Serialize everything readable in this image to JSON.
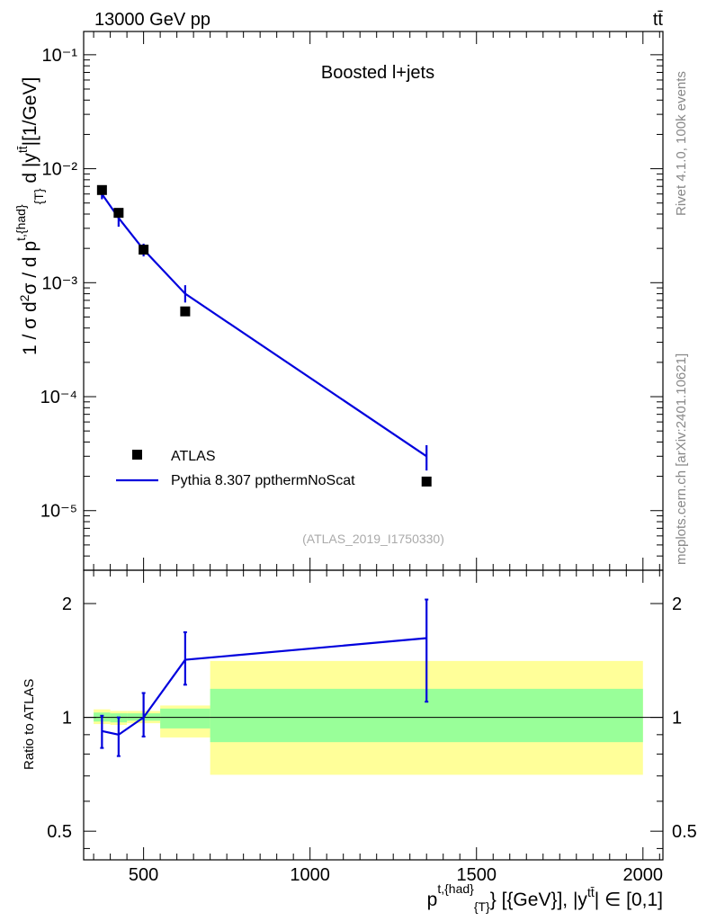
{
  "header": {
    "left": "13000 GeV pp",
    "right": "tt̄"
  },
  "side_texts": {
    "rivet": "Rivet 4.1.0,  100k events",
    "mcplots": "mcplots.cern.ch [arXiv:2401.10621]"
  },
  "chart_data": {
    "type": "line",
    "title": "Boosted l+jets",
    "analysis_id": "(ATLAS_2019_I1750330)",
    "main": {
      "ylabel": "1 / σ d²σ / d p^{t,{had}}_{T} d |y^{tt̄}| [1/GeV]",
      "yscale": "log",
      "ylim": [
        3e-06,
        0.16
      ],
      "y_ticks": [
        {
          "value": 0.1,
          "label": "10⁻¹"
        },
        {
          "value": 0.01,
          "label": "10⁻²"
        },
        {
          "value": 0.001,
          "label": "10⁻³"
        },
        {
          "value": 0.0001,
          "label": "10⁻⁴"
        },
        {
          "value": 1e-05,
          "label": "10⁻⁵"
        }
      ],
      "series": [
        {
          "name": "ATLAS",
          "kind": "data-points",
          "color": "#000000",
          "x": [
            375,
            425,
            500,
            625,
            1350
          ],
          "y": [
            0.0065,
            0.0041,
            0.00195,
            0.00056,
            1.8e-05
          ],
          "err_low": [
            0.0002,
            0.0001,
            5e-05,
            2e-05,
            1e-06
          ],
          "err_high": [
            0.0002,
            0.0001,
            5e-05,
            2e-05,
            1e-06
          ]
        },
        {
          "name": "Pythia 8.307 ppthermNoScat",
          "kind": "line",
          "color": "#0000dd",
          "x": [
            375,
            425,
            500,
            625,
            1350
          ],
          "y": [
            0.006,
            0.0037,
            0.00195,
            0.0008,
            3e-05
          ],
          "err_low": [
            0.0006,
            0.0006,
            0.00025,
            0.00013,
            7.5e-06
          ],
          "err_high": [
            0.0006,
            0.0006,
            0.00025,
            0.00015,
            7.5e-06
          ]
        }
      ]
    },
    "ratio": {
      "ylabel": "Ratio to ATLAS",
      "yscale": "log",
      "ylim": [
        0.42,
        2.45
      ],
      "y_ticks": [
        {
          "value": 0.5,
          "label": "0.5"
        },
        {
          "value": 1,
          "label": "1"
        },
        {
          "value": 2,
          "label": "2"
        }
      ],
      "bins": [
        {
          "x_low": 350,
          "x_high": 400,
          "yellow": [
            0.96,
            1.05
          ],
          "green": [
            0.975,
            1.03
          ]
        },
        {
          "x_low": 400,
          "x_high": 450,
          "yellow": [
            0.955,
            1.04
          ],
          "green": [
            0.97,
            1.025
          ]
        },
        {
          "x_low": 450,
          "x_high": 550,
          "yellow": [
            0.965,
            1.04
          ],
          "green": [
            0.98,
            1.025
          ]
        },
        {
          "x_low": 550,
          "x_high": 700,
          "yellow": [
            0.885,
            1.075
          ],
          "green": [
            0.935,
            1.055
          ]
        },
        {
          "x_low": 700,
          "x_high": 2000,
          "yellow": [
            0.705,
            1.41
          ],
          "green": [
            0.86,
            1.19
          ]
        }
      ],
      "mc_ratio": {
        "x": [
          375,
          425,
          500,
          625,
          1350
        ],
        "y": [
          0.92,
          0.9,
          1.0,
          1.42,
          1.62
        ],
        "err_low": [
          0.09,
          0.11,
          0.11,
          0.2,
          0.52
        ],
        "err_high": [
          0.09,
          0.1,
          0.16,
          0.26,
          0.43
        ]
      }
    },
    "xlabel": "p^{t,{had}}_{T} [{GeV}], |y^{tt̄}| ∈ [0,1]",
    "xlim": [
      320,
      2060
    ],
    "x_ticks": [
      500,
      1000,
      1500,
      2000
    ],
    "legend": {
      "position": "lower-left",
      "entries": [
        "ATLAS",
        "Pythia 8.307 ppthermNoScat"
      ]
    }
  }
}
